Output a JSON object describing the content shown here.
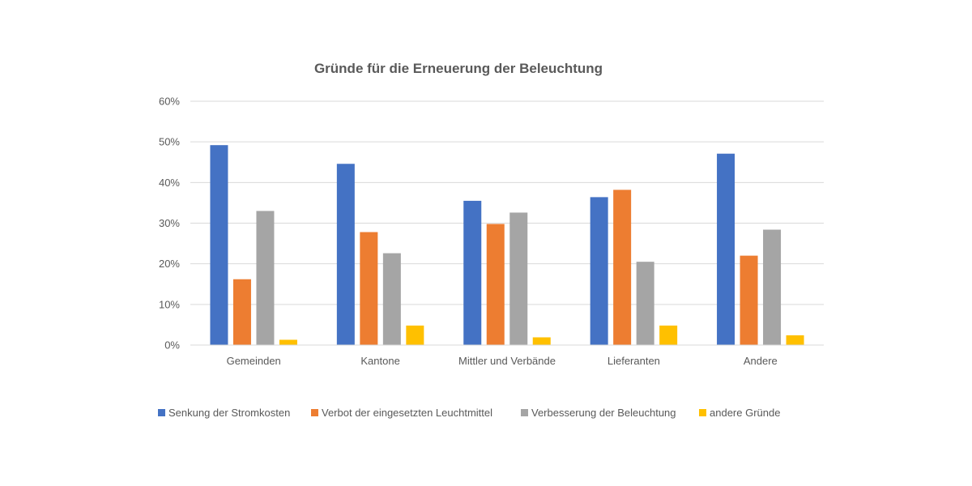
{
  "chart_data": {
    "type": "bar",
    "title": "Gründe für die Erneuerung der Beleuchtung",
    "xlabel": "",
    "ylabel": "",
    "ylim": [
      0,
      0.6
    ],
    "y_ticks": [
      {
        "value": 0,
        "label": "0%"
      },
      {
        "value": 0.1,
        "label": "10%"
      },
      {
        "value": 0.2,
        "label": "20%"
      },
      {
        "value": 0.3,
        "label": "30%"
      },
      {
        "value": 0.4,
        "label": "40%"
      },
      {
        "value": 0.5,
        "label": "50%"
      },
      {
        "value": 0.6,
        "label": "60%"
      }
    ],
    "grid": true,
    "legend_position": "bottom",
    "categories": [
      "Gemeinden",
      "Kantone",
      "Mittler und Verbände",
      "Lieferanten",
      "Andere"
    ],
    "series": [
      {
        "name": "Senkung der Stromkosten",
        "color": "#4472c4",
        "values": [
          0.492,
          0.446,
          0.355,
          0.364,
          0.471
        ]
      },
      {
        "name": "Verbot der eingesetzten Leuchtmittel",
        "color": "#ed7d31",
        "values": [
          0.162,
          0.278,
          0.298,
          0.382,
          0.22
        ]
      },
      {
        "name": "Verbesserung der Beleuchtung",
        "color": "#a5a5a5",
        "values": [
          0.33,
          0.226,
          0.326,
          0.205,
          0.284
        ]
      },
      {
        "name": "andere Gründe",
        "color": "#ffc000",
        "values": [
          0.013,
          0.048,
          0.019,
          0.048,
          0.024
        ]
      }
    ]
  }
}
